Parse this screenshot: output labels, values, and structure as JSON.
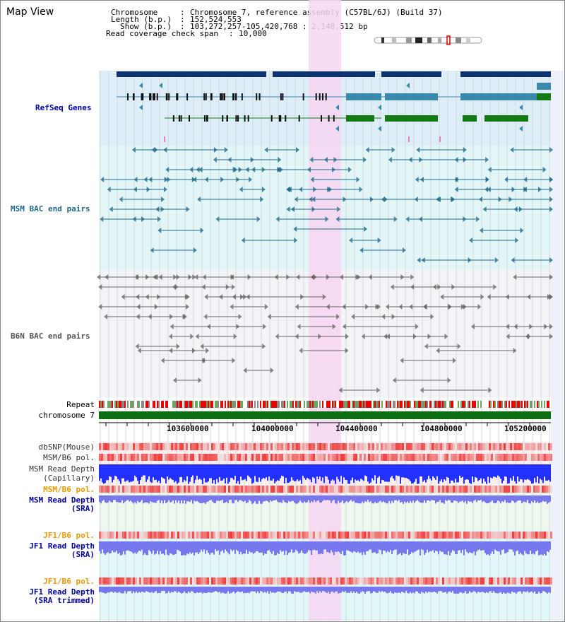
{
  "app": {
    "title": "Map View"
  },
  "header": {
    "rows": [
      {
        "label": "Chromosome",
        "value": "Chromosome 7, reference assembly (C57BL/6J) (Build 37)"
      },
      {
        "label": "Length (b.p.)",
        "value": "152,524,553"
      },
      {
        "label": "Show (b.p.)",
        "value": "103,272,257-105,420,768 : 2,148,512 bp"
      },
      {
        "label": "Read coverage check span",
        "value": "10,000"
      }
    ]
  },
  "tracks": {
    "refseq": "RefSeq Genes",
    "msm_bac": "MSM BAC end pairs",
    "b6n_bac": "B6N BAC end pairs",
    "repeat": "Repeat",
    "chromosome": "chromosome 7",
    "dbsnp": "dbSNP(Mouse)",
    "msm_b6_pol_1": "MSM/B6 pol.",
    "msm_depth_cap_1": "MSM Read Depth",
    "msm_depth_cap_2": "(Capillary)",
    "msm_b6_pol_2": "MSM/B6 pol.",
    "msm_depth_sra_1": "MSM Read Depth",
    "msm_depth_sra_2": "(SRA)",
    "jf1_b6_pol_1": "JF1/B6 pol.",
    "jf1_depth_sra_1": "JF1 Read Depth",
    "jf1_depth_sra_2": "(SRA)",
    "jf1_b6_pol_2": "JF1/B6 pol.",
    "jf1_depth_trim_1": "JF1 Read Depth",
    "jf1_depth_trim_2": "(SRA trimmed)"
  },
  "ruler": {
    "ticks": [
      "103600000",
      "104000000",
      "104400000",
      "104800000",
      "105200000"
    ]
  },
  "colors": {
    "highlight": "#f7d6f2",
    "refseq_bg": "#ddeef8",
    "msm_bg": "#e2f6f8",
    "b6n_bg": "#f3f4f7",
    "chromosome": "#0b6f12",
    "gene_dark": "#0d3470",
    "gene_mid": "#3a8ab0",
    "gene_green": "#137a15",
    "msm_line": "#1f6a8a",
    "b6n_line": "#666666",
    "depth_blue": "#2231ff",
    "depth_lite": "#7777ee"
  }
}
